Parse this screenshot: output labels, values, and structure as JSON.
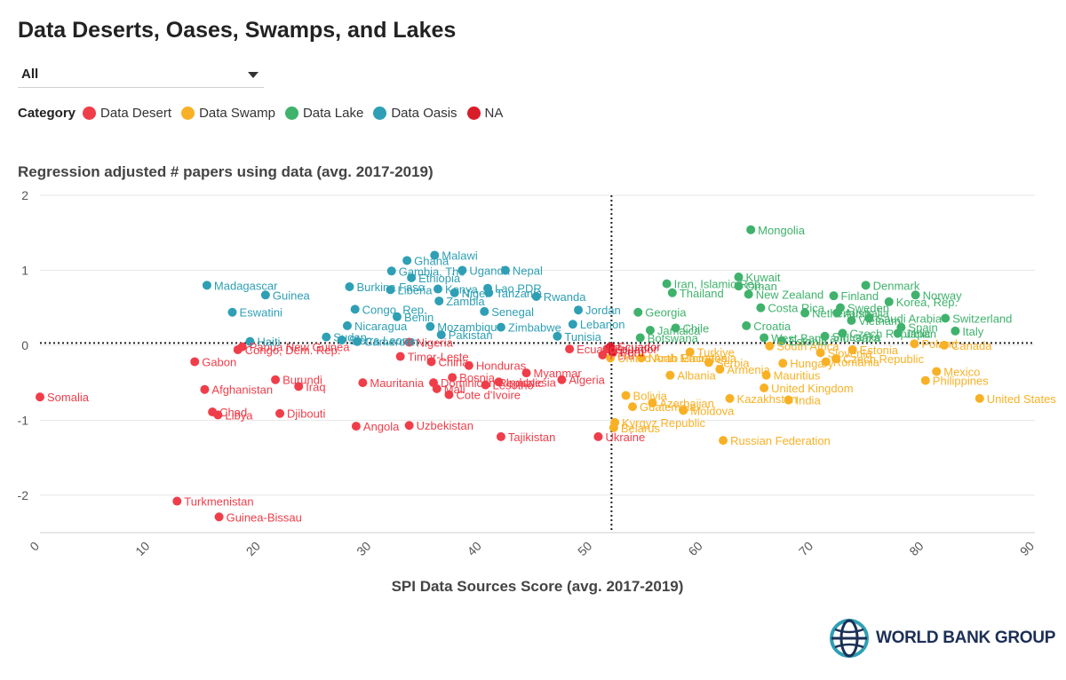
{
  "page": {
    "title": "Data Deserts, Oases, Swamps, and Lakes",
    "dropdown_value": "All",
    "legend_title": "Category",
    "y_title": "Regression adjusted # papers using data (avg. 2017-2019)",
    "x_title": "SPI Data Sources Score (avg. 2017-2019)"
  },
  "legend": [
    {
      "label": "Data Desert",
      "color": "#ef3e4a"
    },
    {
      "label": "Data Swamp",
      "color": "#f8b125"
    },
    {
      "label": "Data Lake",
      "color": "#3fb26c"
    },
    {
      "label": "Data Oasis",
      "color": "#2e9fb4"
    },
    {
      "label": "NA",
      "color": "#d91c2a"
    }
  ],
  "logo": {
    "text": "WORLD BANK GROUP"
  },
  "chart_data": {
    "type": "scatter",
    "title": "Data Deserts, Oases, Swamps, and Lakes",
    "xlabel": "SPI Data Sources Score (avg. 2017-2019)",
    "ylabel": "Regression adjusted # papers using data (avg. 2017-2019)",
    "xlim": [
      0,
      90
    ],
    "ylim": [
      -2.5,
      2
    ],
    "x_ticks": [
      "0",
      "10",
      "20",
      "30",
      "40",
      "50",
      "60",
      "70",
      "80",
      "90"
    ],
    "y_ticks": [
      "2",
      "1",
      "0",
      "-1",
      "-2"
    ],
    "reference_lines": {
      "x": 51.7,
      "y": 0.03
    },
    "grid": "horizontal",
    "series": [
      {
        "name": "Data Desert",
        "color": "#ef3e4a",
        "points": [
          {
            "label": "Somalia",
            "x": 0,
            "y": -0.69
          },
          {
            "label": "Turkmenistan",
            "x": 12.4,
            "y": -2.08
          },
          {
            "label": "Guinea-Bissau",
            "x": 16.2,
            "y": -2.29
          },
          {
            "label": "Gabon",
            "x": 14.0,
            "y": -0.22
          },
          {
            "label": "Afghanistan",
            "x": 14.9,
            "y": -0.59
          },
          {
            "label": "Chad",
            "x": 15.6,
            "y": -0.89
          },
          {
            "label": "Libya",
            "x": 16.1,
            "y": -0.93
          },
          {
            "label": "Papua New Guinea",
            "x": 18.3,
            "y": -0.02
          },
          {
            "label": "Congo, Dem. Rep.",
            "x": 17.9,
            "y": -0.06
          },
          {
            "label": "Burundi",
            "x": 21.3,
            "y": -0.46
          },
          {
            "label": "Iraq",
            "x": 23.4,
            "y": -0.55
          },
          {
            "label": "Djibouti",
            "x": 21.7,
            "y": -0.91
          },
          {
            "label": "Mauritania",
            "x": 29.2,
            "y": -0.5
          },
          {
            "label": "Angola",
            "x": 28.6,
            "y": -1.08
          },
          {
            "label": "Nigeria",
            "x": 33.4,
            "y": 0.04
          },
          {
            "label": "Timor-Leste",
            "x": 32.6,
            "y": -0.15
          },
          {
            "label": "Dominican Republic",
            "x": 35.6,
            "y": -0.5
          },
          {
            "label": "Uzbekistan",
            "x": 33.4,
            "y": -1.07
          },
          {
            "label": "China",
            "x": 35.4,
            "y": -0.22
          },
          {
            "label": "Mali",
            "x": 35.9,
            "y": -0.58
          },
          {
            "label": "Bosnia",
            "x": 37.3,
            "y": -0.43
          },
          {
            "label": "Cote d'Ivoire",
            "x": 37.0,
            "y": -0.66
          },
          {
            "label": "Honduras",
            "x": 38.8,
            "y": -0.27
          },
          {
            "label": "Lesotho",
            "x": 40.3,
            "y": -0.53
          },
          {
            "label": "Indonesia",
            "x": 41.5,
            "y": -0.49
          },
          {
            "label": "Myanmar",
            "x": 44.0,
            "y": -0.37
          },
          {
            "label": "Ecuador",
            "x": 47.9,
            "y": -0.05
          },
          {
            "label": "Algeria",
            "x": 47.2,
            "y": -0.46
          },
          {
            "label": "Ecuador",
            "x": 51.3,
            "y": -0.05
          },
          {
            "label": "Peru",
            "x": 50.9,
            "y": -0.13
          },
          {
            "label": "Tajikistan",
            "x": 41.7,
            "y": -1.22
          },
          {
            "label": "Ukraine",
            "x": 50.5,
            "y": -1.22
          }
        ]
      },
      {
        "name": "Data Swamp",
        "color": "#f8b125",
        "points": [
          {
            "label": "United Arab Emirates",
            "x": 51.6,
            "y": -0.17
          },
          {
            "label": "Bolivia",
            "x": 53.0,
            "y": -0.67
          },
          {
            "label": "Azerbaijan",
            "x": 55.4,
            "y": -0.77
          },
          {
            "label": "Guatemala",
            "x": 53.6,
            "y": -0.82
          },
          {
            "label": "Moldova",
            "x": 58.2,
            "y": -0.87
          },
          {
            "label": "Kyrgyz Republic",
            "x": 52.0,
            "y": -1.03
          },
          {
            "label": "Belarus",
            "x": 51.9,
            "y": -1.1
          },
          {
            "label": "Russian Federation",
            "x": 61.8,
            "y": -1.27
          },
          {
            "label": "North Macedonia",
            "x": 54.4,
            "y": -0.17
          },
          {
            "label": "Turkiye",
            "x": 58.8,
            "y": -0.09
          },
          {
            "label": "Serbia",
            "x": 60.5,
            "y": -0.23
          },
          {
            "label": "Armenia",
            "x": 61.5,
            "y": -0.32
          },
          {
            "label": "Albania",
            "x": 57.0,
            "y": -0.4
          },
          {
            "label": "United Kingdom",
            "x": 65.5,
            "y": -0.57
          },
          {
            "label": "Kazakhstan",
            "x": 62.4,
            "y": -0.71
          },
          {
            "label": "Mauritius",
            "x": 65.7,
            "y": -0.4
          },
          {
            "label": "India",
            "x": 67.7,
            "y": -0.73
          },
          {
            "label": "South Africa",
            "x": 66.0,
            "y": -0.01
          },
          {
            "label": "Slovenia",
            "x": 70.6,
            "y": -0.1
          },
          {
            "label": "Hungary",
            "x": 67.2,
            "y": -0.24
          },
          {
            "label": "Romania",
            "x": 71.1,
            "y": -0.22
          },
          {
            "label": "Czech Republic",
            "x": 72.0,
            "y": -0.18
          },
          {
            "label": "Estonia",
            "x": 73.5,
            "y": -0.06
          },
          {
            "label": "Poland",
            "x": 79.1,
            "y": 0.02
          },
          {
            "label": "Canada",
            "x": 81.8,
            "y": 0.0
          },
          {
            "label": "Mexico",
            "x": 81.1,
            "y": -0.35
          },
          {
            "label": "Philippines",
            "x": 80.1,
            "y": -0.47
          },
          {
            "label": "United States",
            "x": 85.0,
            "y": -0.71
          }
        ]
      },
      {
        "name": "Data Lake",
        "color": "#3fb26c",
        "points": [
          {
            "label": "Mongolia",
            "x": 64.3,
            "y": 1.54
          },
          {
            "label": "Kuwait",
            "x": 63.2,
            "y": 0.91
          },
          {
            "label": "Oman",
            "x": 63.2,
            "y": 0.79
          },
          {
            "label": "Iran, Islamic Rep.",
            "x": 56.7,
            "y": 0.82
          },
          {
            "label": "Thailand",
            "x": 57.2,
            "y": 0.7
          },
          {
            "label": "New Zealand",
            "x": 64.1,
            "y": 0.68
          },
          {
            "label": "Costa Rica",
            "x": 65.2,
            "y": 0.5
          },
          {
            "label": "Georgia",
            "x": 54.1,
            "y": 0.44
          },
          {
            "label": "Chile",
            "x": 57.5,
            "y": 0.23
          },
          {
            "label": "Croatia",
            "x": 63.9,
            "y": 0.26
          },
          {
            "label": "Jamaica",
            "x": 55.2,
            "y": 0.2
          },
          {
            "label": "Botswana",
            "x": 54.3,
            "y": 0.1
          },
          {
            "label": "West Bank and Gaza",
            "x": 65.5,
            "y": 0.1
          },
          {
            "label": "Netherlands",
            "x": 69.2,
            "y": 0.43
          },
          {
            "label": "Australia",
            "x": 72.1,
            "y": 0.43
          },
          {
            "label": "Estonia",
            "x": 67.1,
            "y": 0.06
          },
          {
            "label": "Sri Lanka",
            "x": 71.0,
            "y": 0.12
          },
          {
            "label": "Denmark",
            "x": 74.7,
            "y": 0.8
          },
          {
            "label": "Finland",
            "x": 71.8,
            "y": 0.66
          },
          {
            "label": "Korea, Rep.",
            "x": 76.8,
            "y": 0.58
          },
          {
            "label": "Norway",
            "x": 79.2,
            "y": 0.67
          },
          {
            "label": "Sweden",
            "x": 72.4,
            "y": 0.5
          },
          {
            "label": "Vietnam",
            "x": 73.4,
            "y": 0.33
          },
          {
            "label": "Saudi Arabia",
            "x": 75.0,
            "y": 0.36
          },
          {
            "label": "Switzerland",
            "x": 81.9,
            "y": 0.36
          },
          {
            "label": "Spain",
            "x": 77.9,
            "y": 0.24
          },
          {
            "label": "Japan",
            "x": 77.6,
            "y": 0.16
          },
          {
            "label": "Italy",
            "x": 82.8,
            "y": 0.19
          },
          {
            "label": "Czech Republic",
            "x": 72.6,
            "y": 0.16
          }
        ]
      },
      {
        "name": "Data Oasis",
        "color": "#2e9fb4",
        "points": [
          {
            "label": "Madagascar",
            "x": 15.1,
            "y": 0.8
          },
          {
            "label": "Guinea",
            "x": 20.4,
            "y": 0.67
          },
          {
            "label": "Eswatini",
            "x": 17.4,
            "y": 0.44
          },
          {
            "label": "Haiti",
            "x": 19.0,
            "y": 0.05
          },
          {
            "label": "Sudan",
            "x": 25.9,
            "y": 0.11
          },
          {
            "label": "Nicaragua",
            "x": 27.8,
            "y": 0.26
          },
          {
            "label": "Congo, Rep.",
            "x": 28.5,
            "y": 0.48
          },
          {
            "label": "Burkina Faso",
            "x": 28.0,
            "y": 0.78
          },
          {
            "label": "Ghana",
            "x": 33.2,
            "y": 1.13
          },
          {
            "label": "Malawi",
            "x": 35.7,
            "y": 1.2
          },
          {
            "label": "Gambia, The",
            "x": 31.8,
            "y": 0.99
          },
          {
            "label": "Ethiopia",
            "x": 33.6,
            "y": 0.9
          },
          {
            "label": "Uganda",
            "x": 38.2,
            "y": 1.0
          },
          {
            "label": "Nepal",
            "x": 42.1,
            "y": 1.0
          },
          {
            "label": "Liberia",
            "x": 31.7,
            "y": 0.74
          },
          {
            "label": "Kenya",
            "x": 36.0,
            "y": 0.75
          },
          {
            "label": "Zambia",
            "x": 36.1,
            "y": 0.59
          },
          {
            "label": "Lao PDR",
            "x": 40.5,
            "y": 0.76
          },
          {
            "label": "Niger",
            "x": 37.5,
            "y": 0.7
          },
          {
            "label": "Tanzania",
            "x": 40.6,
            "y": 0.7
          },
          {
            "label": "Rwanda",
            "x": 44.9,
            "y": 0.65
          },
          {
            "label": "Benin",
            "x": 32.3,
            "y": 0.38
          },
          {
            "label": "Mozambique",
            "x": 35.3,
            "y": 0.25
          },
          {
            "label": "Senegal",
            "x": 40.2,
            "y": 0.45
          },
          {
            "label": "Jordan",
            "x": 48.7,
            "y": 0.47
          },
          {
            "label": "Zimbabwe",
            "x": 41.7,
            "y": 0.24
          },
          {
            "label": "Lebanon",
            "x": 48.2,
            "y": 0.28
          },
          {
            "label": "Pakistan",
            "x": 36.3,
            "y": 0.14
          },
          {
            "label": "Tunisia",
            "x": 46.8,
            "y": 0.12
          },
          {
            "label": "Sierra Leone",
            "x": 27.3,
            "y": 0.07
          },
          {
            "label": "Cameroon",
            "x": 28.7,
            "y": 0.05
          }
        ]
      },
      {
        "name": "NA",
        "color": "#d91c2a",
        "points": [
          {
            "label": "Ecuador",
            "x": 51.6,
            "y": -0.02
          },
          {
            "label": "Peru",
            "x": 51.8,
            "y": -0.09
          }
        ]
      }
    ]
  }
}
